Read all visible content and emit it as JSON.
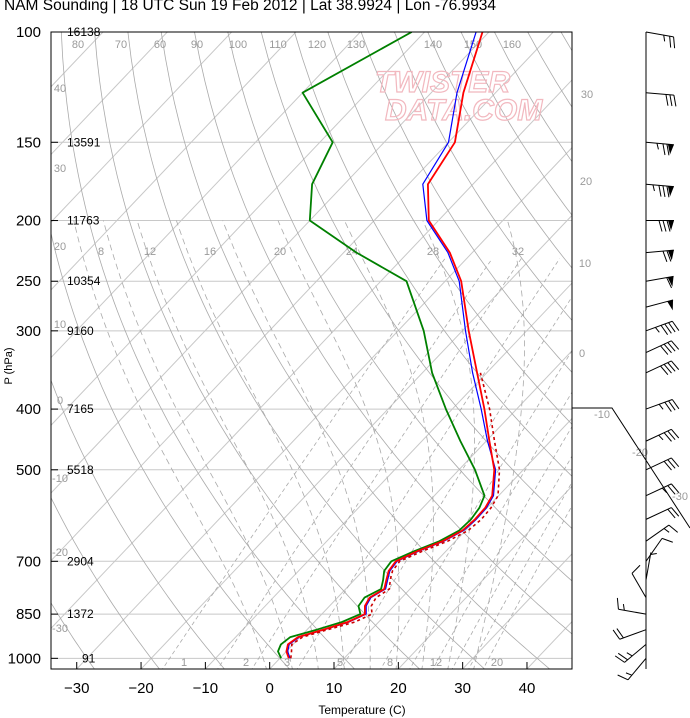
{
  "title": "NAM Sounding | 18 UTC Sun 19 Feb 2012 | Lat 38.9924 | Lon -76.9934",
  "watermark": [
    "TWISTER",
    "DATA.COM"
  ],
  "colors": {
    "temperature": "#ff0000",
    "virtual_temperature": "#0000ff",
    "dewpoint": "#008000",
    "parcel": "#cc0000",
    "isotherm": "#c8c8c8",
    "isobar": "#c8c8c8",
    "adiabat": "#aaaaaa",
    "wind": "#000000"
  },
  "chart_data": {
    "type": "skew-t",
    "xlabel": "Temperature (C)",
    "ylabel": "P (hPa)",
    "xlim": [
      -34,
      47
    ],
    "ylim": [
      1040,
      100
    ],
    "x_ticks": [
      -30,
      -20,
      -10,
      0,
      10,
      20,
      30,
      40
    ],
    "pressure_ticks": [
      100,
      150,
      200,
      250,
      300,
      400,
      500,
      700,
      850,
      1000
    ],
    "heights_m": [
      {
        "p": 100,
        "z": "16138"
      },
      {
        "p": 150,
        "z": "13591"
      },
      {
        "p": 200,
        "z": "11763"
      },
      {
        "p": 250,
        "z": "10354"
      },
      {
        "p": 300,
        "z": "9160"
      },
      {
        "p": 400,
        "z": "7165"
      },
      {
        "p": 500,
        "z": "5518"
      },
      {
        "p": 700,
        "z": "2904"
      },
      {
        "p": 850,
        "z": "1372"
      },
      {
        "p": 1000,
        "z": "91"
      }
    ],
    "mixing_ratio_labels_top": [
      "8",
      "12",
      "16",
      "20",
      "24",
      "28",
      "32"
    ],
    "mixing_ratio_labels_bottom": [
      "1",
      "2",
      "3",
      "5",
      "8",
      "12",
      "20"
    ],
    "isotherm_labels_top": [
      "80",
      "70",
      "60",
      "90",
      "100",
      "110",
      "120",
      "130",
      "140",
      "150",
      "160"
    ],
    "adiabat_labels_right": [
      "30",
      "20",
      "10",
      "0",
      "-10",
      "-20",
      "-30"
    ],
    "adiabat_labels_left": [
      "40",
      "30",
      "20",
      "10",
      "0",
      "-10",
      "-20",
      "-30"
    ],
    "temperature": [
      {
        "p": 1000,
        "t": 1.4
      },
      {
        "p": 975,
        "t": 0.0
      },
      {
        "p": 950,
        "t": -0.8
      },
      {
        "p": 925,
        "t": -0.3
      },
      {
        "p": 900,
        "t": 2.5
      },
      {
        "p": 875,
        "t": 5.2
      },
      {
        "p": 850,
        "t": 6.7
      },
      {
        "p": 825,
        "t": 5.5
      },
      {
        "p": 800,
        "t": 5.0
      },
      {
        "p": 775,
        "t": 6.0
      },
      {
        "p": 750,
        "t": 5.0
      },
      {
        "p": 725,
        "t": 4.0
      },
      {
        "p": 700,
        "t": 3.7
      },
      {
        "p": 675,
        "t": 5.5
      },
      {
        "p": 650,
        "t": 8.0
      },
      {
        "p": 625,
        "t": 9.5
      },
      {
        "p": 600,
        "t": 9.8
      },
      {
        "p": 575,
        "t": 9.7
      },
      {
        "p": 550,
        "t": 9.0
      },
      {
        "p": 500,
        "t": 5.5
      },
      {
        "p": 450,
        "t": 0.5
      },
      {
        "p": 400,
        "t": -5.0
      },
      {
        "p": 350,
        "t": -11.5
      },
      {
        "p": 300,
        "t": -19.0
      },
      {
        "p": 250,
        "t": -27.5
      },
      {
        "p": 225,
        "t": -33.5
      },
      {
        "p": 200,
        "t": -41.5
      },
      {
        "p": 175,
        "t": -47.0
      },
      {
        "p": 150,
        "t": -49.0
      },
      {
        "p": 125,
        "t": -55.0
      },
      {
        "p": 100,
        "t": -61.0
      }
    ],
    "virtual_temperature": [
      {
        "p": 1000,
        "t": 1.6
      },
      {
        "p": 975,
        "t": 0.2
      },
      {
        "p": 950,
        "t": -0.6
      },
      {
        "p": 925,
        "t": -0.1
      },
      {
        "p": 900,
        "t": 2.7
      },
      {
        "p": 875,
        "t": 5.4
      },
      {
        "p": 850,
        "t": 6.9
      },
      {
        "p": 825,
        "t": 5.7
      },
      {
        "p": 800,
        "t": 5.2
      },
      {
        "p": 775,
        "t": 6.2
      },
      {
        "p": 750,
        "t": 5.2
      },
      {
        "p": 725,
        "t": 4.2
      },
      {
        "p": 700,
        "t": 3.9
      },
      {
        "p": 675,
        "t": 5.7
      },
      {
        "p": 650,
        "t": 8.2
      },
      {
        "p": 625,
        "t": 9.7
      },
      {
        "p": 600,
        "t": 10.0
      },
      {
        "p": 575,
        "t": 9.9
      },
      {
        "p": 550,
        "t": 9.2
      },
      {
        "p": 500,
        "t": 5.7
      },
      {
        "p": 450,
        "t": 0.2
      },
      {
        "p": 400,
        "t": -5.5
      },
      {
        "p": 350,
        "t": -12.2
      },
      {
        "p": 300,
        "t": -19.5
      },
      {
        "p": 250,
        "t": -27.8
      },
      {
        "p": 225,
        "t": -33.8
      },
      {
        "p": 200,
        "t": -41.8
      },
      {
        "p": 175,
        "t": -47.8
      },
      {
        "p": 150,
        "t": -50.0
      },
      {
        "p": 125,
        "t": -56.0
      },
      {
        "p": 100,
        "t": -62.0
      }
    ],
    "dewpoint": [
      {
        "p": 1000,
        "t": 0.2
      },
      {
        "p": 975,
        "t": -1.3
      },
      {
        "p": 950,
        "t": -1.9
      },
      {
        "p": 925,
        "t": -1.5
      },
      {
        "p": 900,
        "t": 1.5
      },
      {
        "p": 875,
        "t": 4.3
      },
      {
        "p": 850,
        "t": 6.0
      },
      {
        "p": 825,
        "t": 4.5
      },
      {
        "p": 800,
        "t": 4.2
      },
      {
        "p": 775,
        "t": 5.5
      },
      {
        "p": 750,
        "t": 4.5
      },
      {
        "p": 725,
        "t": 3.3
      },
      {
        "p": 700,
        "t": 3.0
      },
      {
        "p": 675,
        "t": 5.0
      },
      {
        "p": 650,
        "t": 7.5
      },
      {
        "p": 625,
        "t": 9.0
      },
      {
        "p": 600,
        "t": 9.2
      },
      {
        "p": 575,
        "t": 8.8
      },
      {
        "p": 550,
        "t": 7.8
      },
      {
        "p": 500,
        "t": 2.5
      },
      {
        "p": 450,
        "t": -4.0
      },
      {
        "p": 400,
        "t": -11.0
      },
      {
        "p": 350,
        "t": -18.5
      },
      {
        "p": 300,
        "t": -26.0
      },
      {
        "p": 250,
        "t": -36.0
      },
      {
        "p": 225,
        "t": -48.0
      },
      {
        "p": 200,
        "t": -60.0
      },
      {
        "p": 175,
        "t": -65.0
      },
      {
        "p": 150,
        "t": -68.0
      },
      {
        "p": 125,
        "t": -80.0
      },
      {
        "p": 100,
        "t": -72.0
      }
    ],
    "parcel": [
      {
        "p": 1000,
        "t": 1.7
      },
      {
        "p": 975,
        "t": 0.8
      },
      {
        "p": 950,
        "t": -0.2
      },
      {
        "p": 925,
        "t": 0.4
      },
      {
        "p": 900,
        "t": 3.2
      },
      {
        "p": 875,
        "t": 6.3
      },
      {
        "p": 850,
        "t": 7.8
      },
      {
        "p": 825,
        "t": 6.5
      },
      {
        "p": 800,
        "t": 6.0
      },
      {
        "p": 775,
        "t": 6.8
      },
      {
        "p": 750,
        "t": 5.6
      },
      {
        "p": 725,
        "t": 4.6
      },
      {
        "p": 700,
        "t": 4.3
      },
      {
        "p": 675,
        "t": 6.3
      },
      {
        "p": 650,
        "t": 8.8
      },
      {
        "p": 625,
        "t": 10.4
      },
      {
        "p": 600,
        "t": 10.8
      },
      {
        "p": 575,
        "t": 10.6
      },
      {
        "p": 550,
        "t": 9.9
      },
      {
        "p": 500,
        "t": 6.3
      },
      {
        "p": 450,
        "t": 1.3
      },
      {
        "p": 400,
        "t": -4.2
      },
      {
        "p": 350,
        "t": -11.0
      }
    ],
    "winds": [
      {
        "p": 100,
        "dir": 280,
        "spd": 25
      },
      {
        "p": 125,
        "dir": 275,
        "spd": 30
      },
      {
        "p": 150,
        "dir": 275,
        "spd": 75
      },
      {
        "p": 175,
        "dir": 275,
        "spd": 85
      },
      {
        "p": 200,
        "dir": 270,
        "spd": 80
      },
      {
        "p": 225,
        "dir": 265,
        "spd": 70
      },
      {
        "p": 250,
        "dir": 260,
        "spd": 60
      },
      {
        "p": 275,
        "dir": 255,
        "spd": 50
      },
      {
        "p": 300,
        "dir": 250,
        "spd": 45
      },
      {
        "p": 325,
        "dir": 245,
        "spd": 40
      },
      {
        "p": 350,
        "dir": 245,
        "spd": 40
      },
      {
        "p": 400,
        "dir": 250,
        "spd": 35
      },
      {
        "p": 450,
        "dir": 245,
        "spd": 35
      },
      {
        "p": 500,
        "dir": 245,
        "spd": 30
      },
      {
        "p": 550,
        "dir": 245,
        "spd": 25
      },
      {
        "p": 600,
        "dir": 245,
        "spd": 20
      },
      {
        "p": 650,
        "dir": 235,
        "spd": 15
      },
      {
        "p": 700,
        "dir": 215,
        "spd": 10
      },
      {
        "p": 750,
        "dir": 190,
        "spd": 5
      },
      {
        "p": 800,
        "dir": 150,
        "spd": 10
      },
      {
        "p": 850,
        "dir": 100,
        "spd": 15
      },
      {
        "p": 900,
        "dir": 70,
        "spd": 20
      },
      {
        "p": 950,
        "dir": 50,
        "spd": 25
      },
      {
        "p": 1000,
        "dir": 40,
        "spd": 15
      }
    ]
  }
}
